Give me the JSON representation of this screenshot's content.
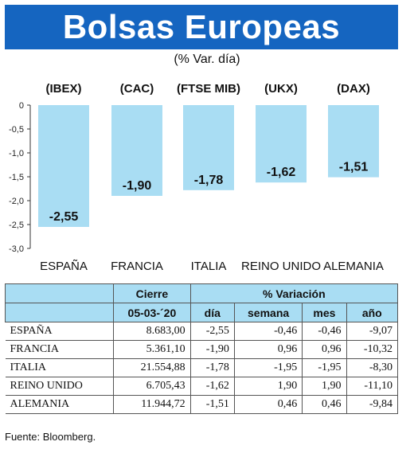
{
  "title": "Bolsas Europeas",
  "subtitle": "(% Var. día)",
  "chart_data": {
    "type": "bar",
    "indices": [
      "(IBEX)",
      "(CAC)",
      "(FTSE MIB)",
      "(UKX)",
      "(DAX)"
    ],
    "categories": [
      "ESPAÑA",
      "FRANCIA",
      "ITALIA",
      "REINO UNIDO",
      "ALEMANIA"
    ],
    "values": [
      -2.55,
      -1.9,
      -1.78,
      -1.62,
      -1.51
    ],
    "value_labels": [
      "-2,55",
      "-1,90",
      "-1,78",
      "-1,62",
      "-1,51"
    ],
    "y_ticks": [
      "0",
      "-0,5",
      "-1,0",
      "-1,5",
      "-2,0",
      "-2,5",
      "-3,0"
    ],
    "y_tick_values": [
      0,
      -0.5,
      -1.0,
      -1.5,
      -2.0,
      -2.5,
      -3.0
    ],
    "ylim": [
      -3.0,
      0
    ],
    "bar_color": "#a9ddf3",
    "grid": false
  },
  "table": {
    "header_cierre": "Cierre",
    "header_variacion": "% Variación",
    "header_date": "05-03-´20",
    "col_dia": "día",
    "col_semana": "semana",
    "col_mes": "mes",
    "col_anio": "año",
    "rows": [
      {
        "name": "ESPAÑA",
        "cierre": "8.683,00",
        "dia": "-2,55",
        "semana": "-0,46",
        "mes": "-0,46",
        "anio": "-9,07"
      },
      {
        "name": "FRANCIA",
        "cierre": "5.361,10",
        "dia": "-1,90",
        "semana": "0,96",
        "mes": "0,96",
        "anio": "-10,32"
      },
      {
        "name": "ITALIA",
        "cierre": "21.554,88",
        "dia": "-1,78",
        "semana": "-1,95",
        "mes": "-1,95",
        "anio": "-8,30"
      },
      {
        "name": "REINO UNIDO",
        "cierre": "6.705,43",
        "dia": "-1,62",
        "semana": "1,90",
        "mes": "1,90",
        "anio": "-11,10"
      },
      {
        "name": "ALEMANIA",
        "cierre": "11.944,72",
        "dia": "-1,51",
        "semana": "0,46",
        "mes": "0,46",
        "anio": "-9,84"
      }
    ]
  },
  "source": "Fuente: Bloomberg.",
  "colors": {
    "banner": "#1565c0",
    "header": "#a9ddf3"
  }
}
